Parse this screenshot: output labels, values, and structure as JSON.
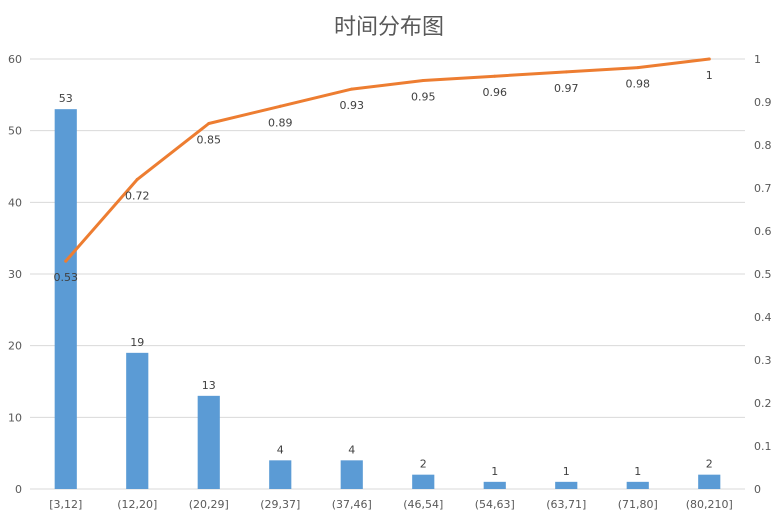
{
  "chart_data": {
    "type": "bar",
    "title": "时间分布图",
    "xlabel": "",
    "ylabel": "",
    "categories": [
      "[3,12]",
      "(12,20]",
      "(20,29]",
      "(29,37]",
      "(37,46]",
      "(46,54]",
      "(54,63]",
      "(63,71]",
      "(71,80]",
      "(80,210]"
    ],
    "series": [
      {
        "type": "bar",
        "axis": "left",
        "color": "#5b9bd5",
        "values": [
          53,
          19,
          13,
          4,
          4,
          2,
          1,
          1,
          1,
          2
        ]
      },
      {
        "type": "line",
        "axis": "right",
        "color": "#ed7d31",
        "values": [
          0.53,
          0.72,
          0.85,
          0.89,
          0.93,
          0.95,
          0.96,
          0.97,
          0.98,
          1
        ]
      }
    ],
    "ylim": [
      0,
      60
    ],
    "yticks": [
      0,
      10,
      20,
      30,
      40,
      50,
      60
    ],
    "y2lim": [
      0,
      1
    ],
    "y2ticks": [
      "0",
      "0.1",
      "0.2",
      "0.3",
      "0.4",
      "0.5",
      "0.6",
      "0.7",
      "0.8",
      "0.9",
      "1"
    ],
    "grid": true,
    "legend": "none",
    "gridColor": "#d9d9d9"
  }
}
